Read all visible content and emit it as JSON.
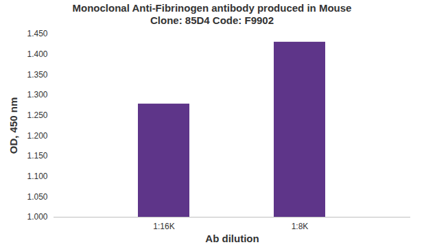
{
  "chart_data": {
    "type": "bar",
    "title": "Monoclonal Anti-Fibrinogen antibody produced in Mouse",
    "subtitle": "Clone: 85D4  Code: F9902",
    "x_label": "Ab dilution",
    "y_label": "OD, 450 nm",
    "categories": [
      "1:16K",
      "1:8K"
    ],
    "values": [
      1.278,
      1.43
    ],
    "color": "#5e3589",
    "ylim": [
      1.0,
      1.45
    ],
    "yticks": [
      {
        "value": 1.0,
        "label": "1.000"
      },
      {
        "value": 1.05,
        "label": "1.050"
      },
      {
        "value": 1.1,
        "label": "1.100"
      },
      {
        "value": 1.15,
        "label": "1.150"
      },
      {
        "value": 1.2,
        "label": "1.200"
      },
      {
        "value": 1.25,
        "label": "1.250"
      },
      {
        "value": 1.3,
        "label": "1.300"
      },
      {
        "value": 1.35,
        "label": "1.350"
      },
      {
        "value": 1.4,
        "label": "1.400"
      },
      {
        "value": 1.45,
        "label": "1.450"
      }
    ],
    "grid": false
  }
}
